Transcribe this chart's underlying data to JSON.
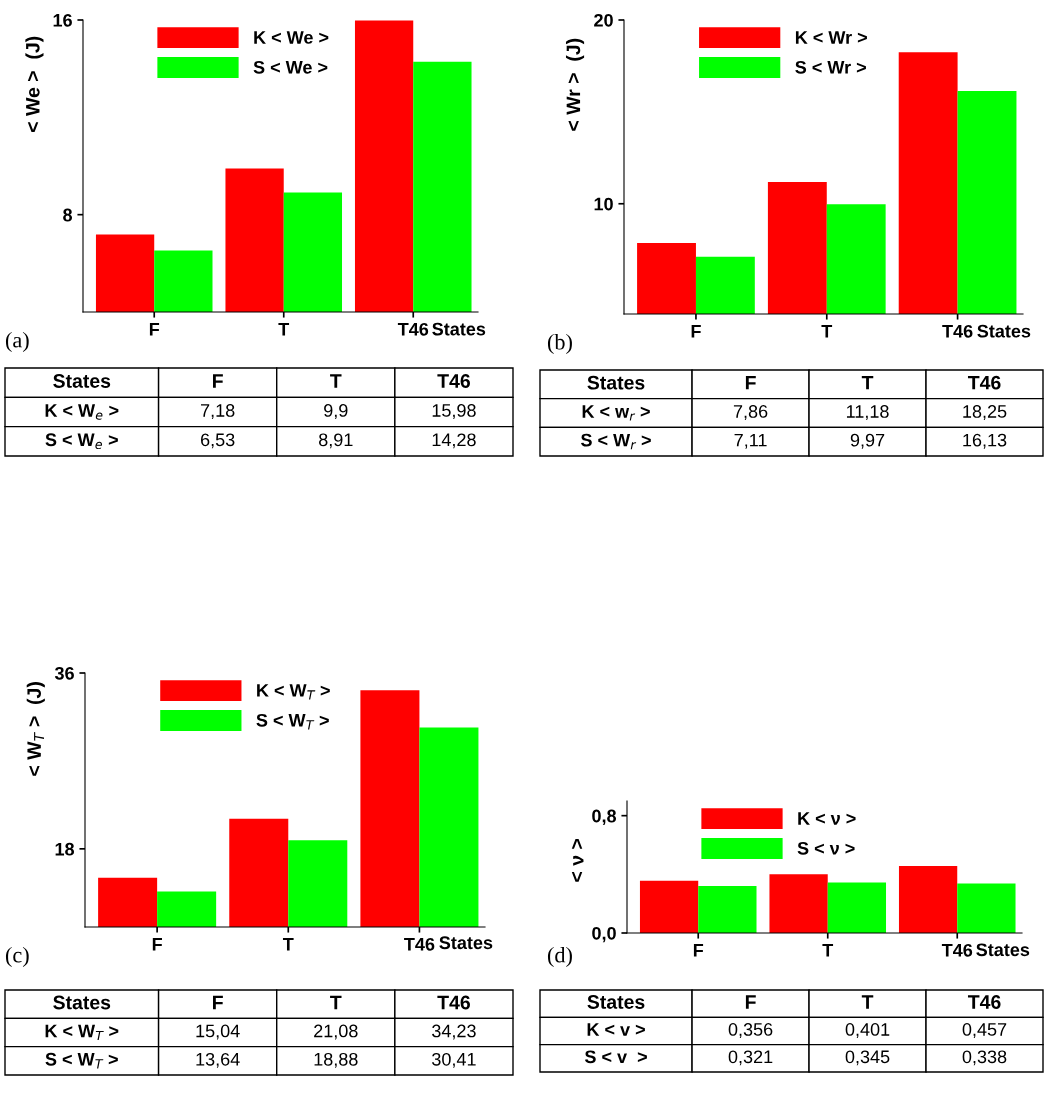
{
  "chart_data": [
    {
      "type": "bar",
      "categories": [
        "F",
        "T",
        "T46"
      ],
      "xlabel": "States",
      "ylabel": "< We >  (J)",
      "ylim": [
        4,
        16
      ],
      "yticks": [
        8,
        16
      ],
      "legend": "top left",
      "grid": false,
      "annotations": [
        "(a)",
        "States",
        "K < W$_{e}$ >",
        "S < W$_{e}$ >"
      ],
      "series": [
        {
          "name": "K < We >",
          "color": "#ff0000",
          "values": [
            7.18,
            9.9,
            15.98
          ],
          "value_labels": [
            "7,18",
            "9,9",
            "15,98"
          ]
        },
        {
          "name": "S < We >",
          "color": "#00ff00",
          "values": [
            6.53,
            8.91,
            14.28
          ],
          "value_labels": [
            "6,53",
            "8,91",
            "14,28"
          ]
        }
      ]
    },
    {
      "type": "bar",
      "categories": [
        "F",
        "T",
        "T46"
      ],
      "xlabel": "States",
      "ylabel": "< Wr >  (J)",
      "ylim": [
        4,
        20
      ],
      "yticks": [
        10,
        20
      ],
      "legend": "top left",
      "grid": false,
      "annotations": [
        "(b)",
        "States",
        "K < w$_{r}$ >",
        "S < W$_{r}$ >"
      ],
      "series": [
        {
          "name": "K < Wr >",
          "color": "#ff0000",
          "values": [
            7.86,
            11.18,
            18.25
          ],
          "value_labels": [
            "7,86",
            "11,18",
            "18,25"
          ]
        },
        {
          "name": "S < Wr >",
          "color": "#00ff00",
          "values": [
            7.11,
            9.97,
            16.13
          ],
          "value_labels": [
            "7,11",
            "9,97",
            "16,13"
          ]
        }
      ]
    },
    {
      "type": "bar",
      "categories": [
        "F",
        "T",
        "T46"
      ],
      "xlabel": "States",
      "ylabel": "< W$_{T}$ >  (J)",
      "ylim": [
        10,
        36
      ],
      "yticks": [
        18,
        36
      ],
      "legend": "top left",
      "grid": false,
      "annotations": [
        "(c)",
        "States",
        "K < W$_{T}$ >",
        "S < W$_{T}$ >"
      ],
      "series": [
        {
          "name": "K < W$_{T}$ >",
          "color": "#ff0000",
          "values": [
            15.04,
            21.08,
            34.23
          ],
          "value_labels": [
            "15,04",
            "21,08",
            "34,23"
          ]
        },
        {
          "name": "S < W$_{T}$ >",
          "color": "#00ff00",
          "values": [
            13.64,
            18.88,
            30.41
          ],
          "value_labels": [
            "13,64",
            "18,88",
            "30,41"
          ]
        }
      ]
    },
    {
      "type": "bar",
      "categories": [
        "F",
        "T",
        "T46"
      ],
      "xlabel": "States",
      "ylabel": "< ν >",
      "ylim": [
        0,
        0.9
      ],
      "yticks": [
        {
          "value": 0,
          "label": "0,0"
        },
        {
          "value": 0.8,
          "label": "0,8"
        }
      ],
      "legend": "top left",
      "grid": false,
      "annotations": [
        "(d)",
        "States",
        "K < v >",
        "S < v  >"
      ],
      "series": [
        {
          "name": "K < ν >",
          "color": "#ff0000",
          "values": [
            0.356,
            0.401,
            0.457
          ],
          "value_labels": [
            "0,356",
            "0,401",
            "0,457"
          ]
        },
        {
          "name": "S < ν >",
          "color": "#00ff00",
          "values": [
            0.321,
            0.345,
            0.338
          ],
          "value_labels": [
            "0,321",
            "0,345",
            "0,338"
          ]
        }
      ]
    }
  ]
}
